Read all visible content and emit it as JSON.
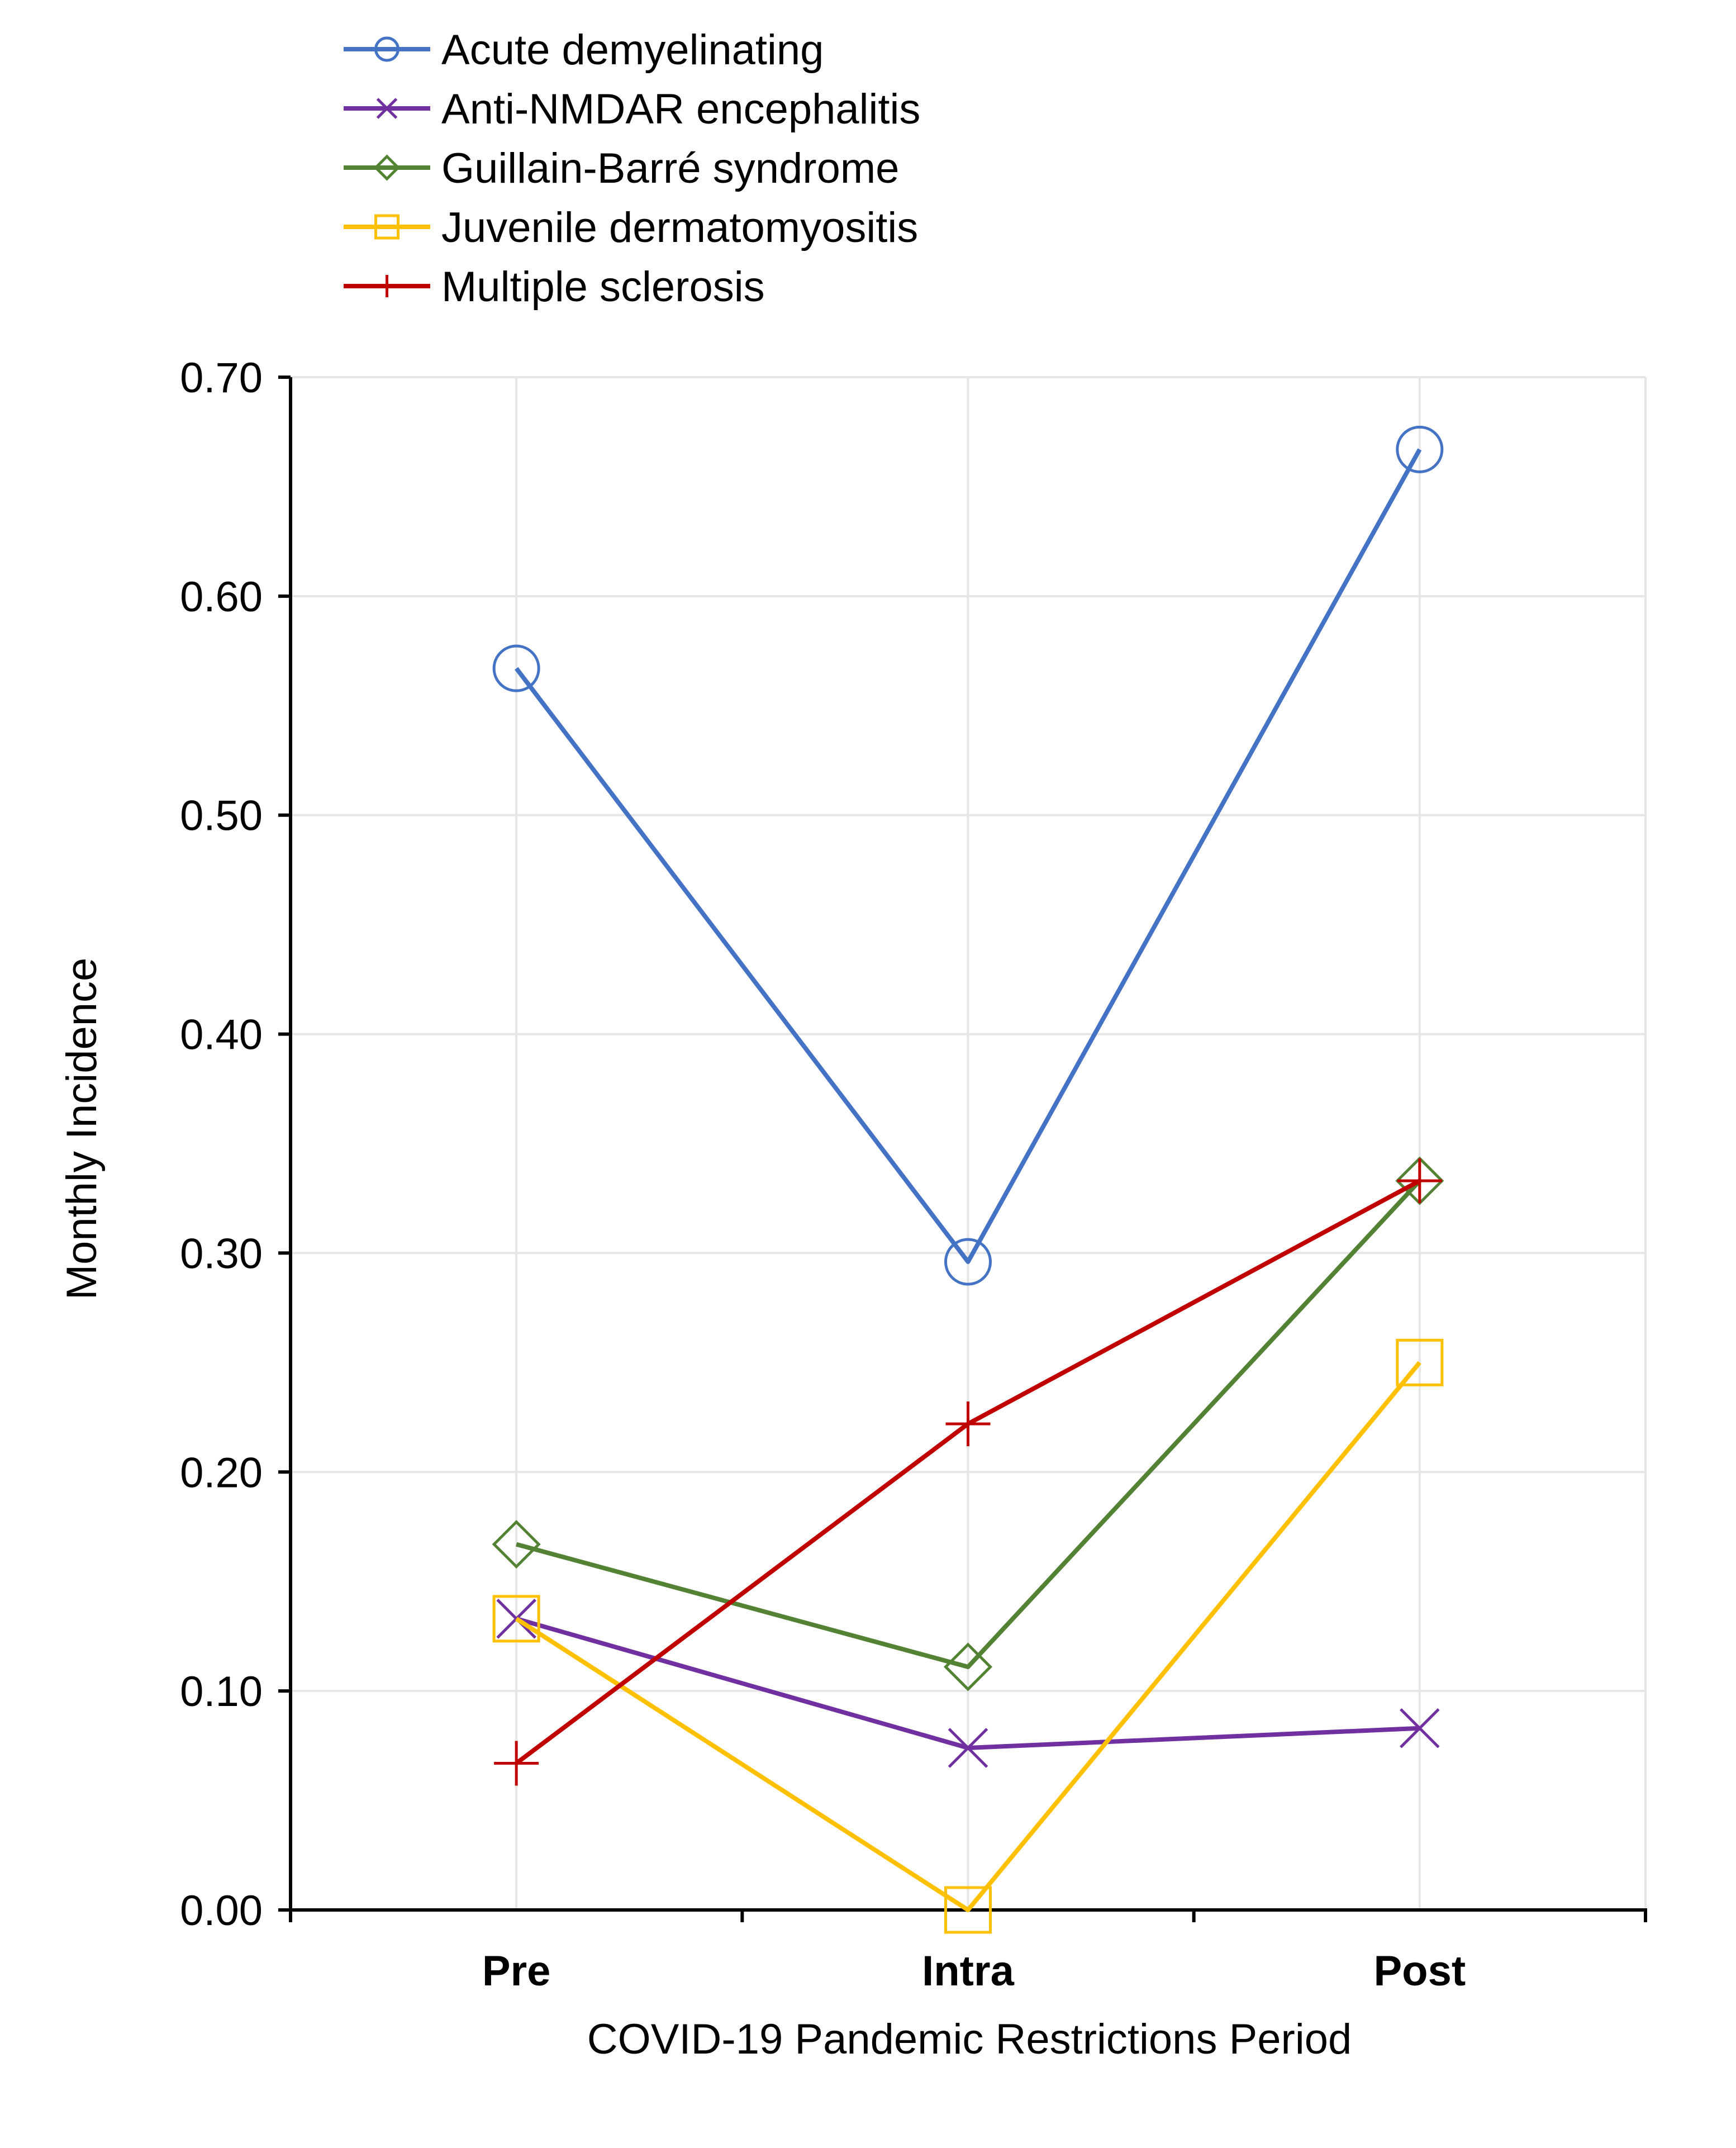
{
  "chart_data": {
    "type": "line",
    "title": "",
    "xlabel": "COVID-19 Pandemic Restrictions Period",
    "ylabel": "Monthly Incidence",
    "categories": [
      "Pre",
      "Intra",
      "Post"
    ],
    "ylim": [
      0,
      0.7
    ],
    "yticks": [
      "0.00",
      "0.10",
      "0.20",
      "0.30",
      "0.40",
      "0.50",
      "0.60",
      "0.70"
    ],
    "ytick_values": [
      0,
      0.1,
      0.2,
      0.3,
      0.4,
      0.5,
      0.6,
      0.7
    ],
    "grid": true,
    "legend_position": "top-left",
    "series": [
      {
        "name": "Acute demyelinating",
        "color": "#4472C4",
        "marker": "circle",
        "values": [
          0.567,
          0.296,
          0.667
        ]
      },
      {
        "name": "Anti-NMDAR encephalitis",
        "color": "#7030A0",
        "marker": "x",
        "values": [
          0.133,
          0.074,
          0.083
        ]
      },
      {
        "name": "Guillain-Barré syndrome",
        "color": "#548235",
        "marker": "diamond",
        "values": [
          0.167,
          0.111,
          0.333
        ]
      },
      {
        "name": "Juvenile dermatomyositis",
        "color": "#FFC000",
        "marker": "square",
        "values": [
          0.133,
          0.0,
          0.25
        ]
      },
      {
        "name": "Multiple sclerosis",
        "color": "#C00000",
        "marker": "plus",
        "values": [
          0.067,
          0.222,
          0.333
        ]
      }
    ]
  }
}
